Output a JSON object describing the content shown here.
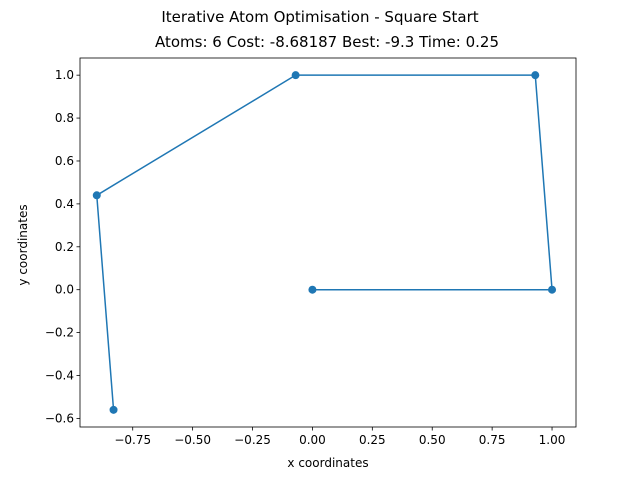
{
  "chart_data": {
    "type": "line",
    "title": "Iterative Atom Optimisation - Square Start",
    "subtitle": "Atoms: 6 Cost: -8.68187 Best: -9.3 Time: 0.25",
    "xlabel": "x coordinates",
    "ylabel": "y coordinates",
    "xlim": [
      -0.97,
      1.1
    ],
    "ylim": [
      -0.64,
      1.08
    ],
    "x_ticks": [
      -0.75,
      -0.5,
      -0.25,
      0.0,
      0.25,
      0.5,
      0.75,
      1.0
    ],
    "x_tick_labels": [
      "−0.75",
      "−0.50",
      "−0.25",
      "0.00",
      "0.25",
      "0.50",
      "0.75",
      "1.00"
    ],
    "y_ticks": [
      -0.6,
      -0.4,
      -0.2,
      0.0,
      0.2,
      0.4,
      0.6,
      0.8,
      1.0
    ],
    "y_tick_labels": [
      "−0.6",
      "−0.4",
      "−0.2",
      "0.0",
      "0.2",
      "0.4",
      "0.6",
      "0.8",
      "1.0"
    ],
    "grid": false,
    "series": [
      {
        "color": "#1f77b4",
        "marker": "circle",
        "x": [
          0.0,
          1.0,
          0.93,
          -0.07,
          -0.9,
          -0.83
        ],
        "y": [
          0.0,
          0.0,
          1.0,
          1.0,
          0.44,
          -0.56
        ]
      }
    ]
  }
}
